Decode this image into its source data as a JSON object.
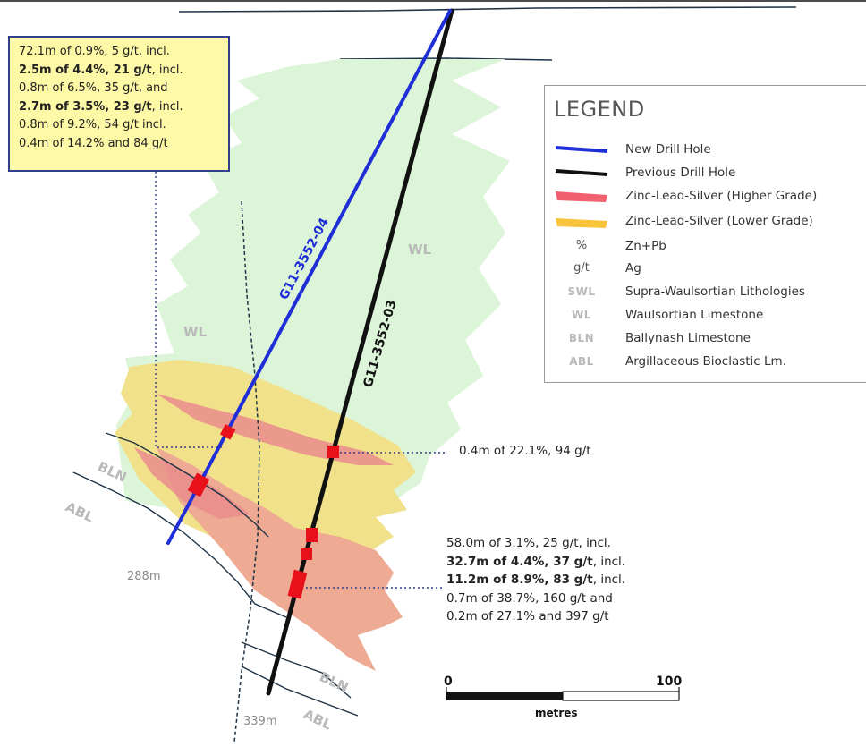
{
  "callout_top": {
    "lines": [
      "72.1m of 0.9%, 5 g/t, incl.",
      "2.5m of 4.4%, 21 g/t",
      ", incl.",
      "0.8m of 6.5%, 35 g/t, and",
      "2.7m of 3.5%, 23 g/t",
      ", incl.",
      "0.8m of 9.2%, 54 g/t incl.",
      "0.4m of 14.2% and 84 g/t"
    ]
  },
  "legend": {
    "title": "LEGEND",
    "items": [
      {
        "symbol": "",
        "label": "New Drill Hole",
        "kind": "line",
        "color": "#1f2ed6"
      },
      {
        "symbol": "",
        "label": "Previous Drill Hole",
        "kind": "line",
        "color": "#111111"
      },
      {
        "symbol": "",
        "label": "Zinc-Lead-Silver (Higher Grade)",
        "kind": "swatch",
        "color": "#f26070"
      },
      {
        "symbol": "",
        "label": "Zinc-Lead-Silver (Lower Grade)",
        "kind": "swatch",
        "color": "#f7c43b"
      },
      {
        "symbol": "%",
        "label": "Zn+Pb",
        "kind": "text"
      },
      {
        "symbol": "g/t",
        "label": "Ag",
        "kind": "text"
      },
      {
        "symbol": "SWL",
        "label": "Supra-Waulsortian Lithologies",
        "kind": "abbr"
      },
      {
        "symbol": "WL",
        "label": "Waulsortian Limestone",
        "kind": "abbr"
      },
      {
        "symbol": "BLN",
        "label": "Ballynash Limestone",
        "kind": "abbr"
      },
      {
        "symbol": "ABL",
        "label": "Argillaceous Bioclastic Lm.",
        "kind": "abbr"
      }
    ]
  },
  "drill_holes": {
    "new": {
      "label": "G11-3552-04",
      "depth": "288m"
    },
    "previous": {
      "label": "G11-3552-03",
      "depth": "339m"
    }
  },
  "unit_labels": {
    "wl_right": "WL",
    "wl_left": "WL",
    "bln_upper": "BLN",
    "abl_upper": "ABL",
    "bln_lower": "BLN",
    "abl_lower": "ABL"
  },
  "intercept_mid": "0.4m of 22.1%, 94 g/t",
  "intercept_bottom": {
    "lines": [
      "58.0m of 3.1%, 25 g/t, incl.",
      "32.7m of 4.4%, 37 g/t",
      ", incl.",
      "11.2m of 8.9%, 83 g/t",
      ", incl.",
      "0.7m of 38.7%, 160 g/t and",
      "0.2m of 27.1% and 397 g/t"
    ]
  },
  "scale_bar": {
    "start": "0",
    "end": "100",
    "unit": "metres"
  },
  "colors": {
    "wl_zone": "#dcf5d8",
    "low_grade": "#f1e18a",
    "high_grade": "#eeaa92",
    "high_grade_streak": "#e98c8c",
    "new_hole": "#1f2ed6",
    "previous_hole": "#111111",
    "intercept": "#e8101a",
    "callout_bg": "#fef9a6",
    "callout_border": "#2f3f8c",
    "unit_label": "#b9b9b9"
  }
}
